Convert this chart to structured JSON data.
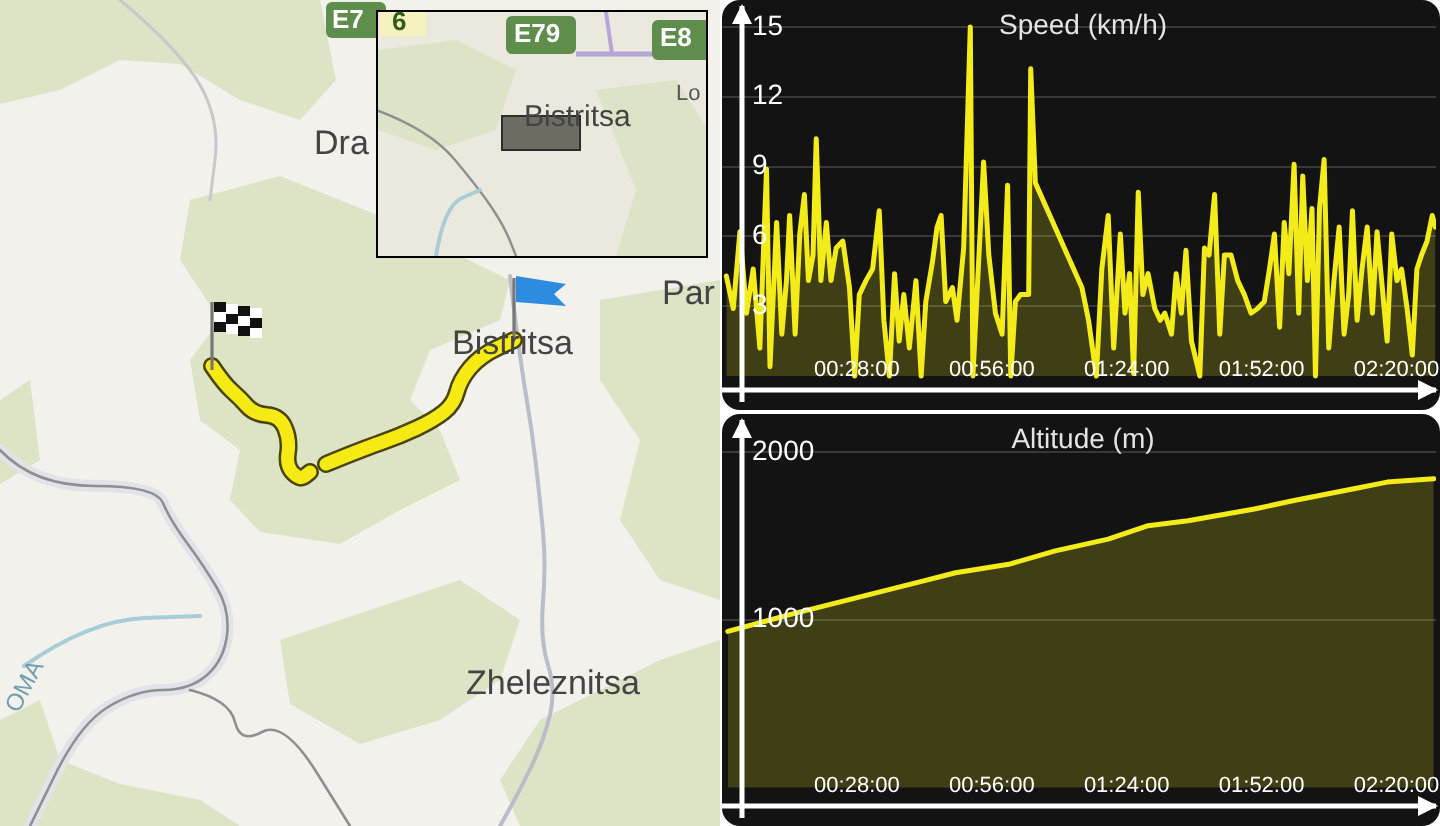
{
  "chart_data": [
    {
      "type": "other",
      "annotations": [
        "E7",
        "6",
        "E79",
        "E8",
        "Lo",
        "Dra",
        "Bistritsa",
        "Par",
        "Bistritsa",
        "Zheleznitsa",
        "OMA"
      ]
    },
    {
      "type": "area",
      "title": "Speed (km/h)",
      "color": "#f4ec18",
      "grid": "y",
      "xlim": [
        0,
        2.47
      ],
      "ylim": [
        -0.6,
        15.9
      ],
      "yticks": [
        3,
        6,
        9,
        12,
        15
      ],
      "xticks": [
        {
          "value": 0.4667,
          "label": "00:28:00"
        },
        {
          "value": 0.9333,
          "label": "00:56:00"
        },
        {
          "value": 1.4,
          "label": "01:24:00"
        },
        {
          "value": 1.8667,
          "label": "01:52:00"
        },
        {
          "value": 2.3333,
          "label": "02:20:00"
        }
      ],
      "x": [
        0.015,
        0.039,
        0.062,
        0.085,
        0.108,
        0.131,
        0.154,
        0.166,
        0.189,
        0.207,
        0.223,
        0.234,
        0.253,
        0.269,
        0.285,
        0.299,
        0.315,
        0.326,
        0.342,
        0.361,
        0.377,
        0.395,
        0.418,
        0.441,
        0.459,
        0.475,
        0.498,
        0.521,
        0.544,
        0.56,
        0.579,
        0.597,
        0.613,
        0.629,
        0.648,
        0.671,
        0.689,
        0.705,
        0.728,
        0.744,
        0.758,
        0.774,
        0.797,
        0.813,
        0.836,
        0.859,
        0.868,
        0.889,
        0.905,
        0.923,
        0.946,
        0.969,
        0.988,
        0.999,
        1.015,
        1.033,
        1.061,
        1.068,
        1.084,
        1.245,
        1.268,
        1.295,
        1.314,
        1.336,
        1.355,
        1.378,
        1.394,
        1.41,
        1.424,
        1.44,
        1.456,
        1.474,
        1.497,
        1.516,
        1.532,
        1.555,
        1.571,
        1.589,
        1.605,
        1.624,
        1.653,
        1.669,
        1.685,
        1.704,
        1.722,
        1.738,
        1.761,
        1.784,
        1.807,
        1.83,
        1.853,
        1.876,
        1.894,
        1.911,
        1.929,
        1.945,
        1.961,
        1.979,
        1.995,
        2.009,
        2.025,
        2.041,
        2.053,
        2.067,
        2.083,
        2.099,
        2.117,
        2.135,
        2.152,
        2.168,
        2.181,
        2.197,
        2.214,
        2.232,
        2.25,
        2.266,
        2.282,
        2.301,
        2.317,
        2.335,
        2.351,
        2.37,
        2.388,
        2.404,
        2.42,
        2.439,
        2.457,
        2.468
      ],
      "values": [
        4.3,
        2.9,
        6.2,
        2.7,
        4.6,
        1.2,
        8.9,
        0.4,
        6.6,
        1.8,
        4.1,
        6.9,
        1.8,
        6.1,
        7.8,
        4.1,
        5.2,
        10.2,
        4.1,
        6.6,
        4.1,
        5.5,
        5.8,
        3.8,
        0,
        3.5,
        4.1,
        4.6,
        7.1,
        2.4,
        0,
        4.4,
        1.5,
        3.5,
        1.2,
        4.1,
        0,
        3.2,
        4.9,
        6.4,
        6.9,
        3.2,
        3.8,
        2.4,
        5.5,
        15,
        0,
        5.2,
        9.2,
        5.2,
        2.7,
        1.8,
        8.2,
        0,
        3.2,
        3.5,
        3.5,
        13.2,
        8.3,
        3.8,
        2.4,
        0,
        4.6,
        6.9,
        1.2,
        6.1,
        2.7,
        4.4,
        0.1,
        7.9,
        3.5,
        4.4,
        2.9,
        2.4,
        2.7,
        1.8,
        4.4,
        2.7,
        5.4,
        1.5,
        0,
        5.5,
        5.2,
        7.8,
        1.8,
        5.2,
        5.2,
        4.1,
        3.5,
        2.7,
        2.9,
        3.2,
        4.6,
        6.1,
        2.1,
        6.6,
        4.4,
        9.1,
        2.7,
        8.6,
        4.1,
        7.2,
        0,
        7.2,
        9.3,
        1.2,
        4.1,
        6.4,
        1.8,
        3.5,
        7.1,
        2.4,
        4.6,
        6.4,
        2.7,
        6.2,
        4.1,
        1.5,
        6.1,
        4.1,
        4.6,
        2.9,
        0.9,
        4.6,
        5.2,
        5.8,
        6.9,
        6.4
      ]
    },
    {
      "type": "area",
      "title": "Altitude (m)",
      "color": "#f4ec18",
      "grid": "y",
      "xlim": [
        0,
        2.47
      ],
      "ylim": [
        -110,
        2190
      ],
      "yticks": [
        1000,
        2000
      ],
      "xticks": [
        {
          "value": 0.4667,
          "label": "00:28:00"
        },
        {
          "value": 0.9333,
          "label": "00:56:00"
        },
        {
          "value": 1.4,
          "label": "01:24:00"
        },
        {
          "value": 1.8667,
          "label": "01:52:00"
        },
        {
          "value": 2.3333,
          "label": "02:20:00"
        }
      ],
      "x": [
        0.02,
        0.234,
        0.464,
        0.694,
        0.808,
        0.992,
        1.153,
        1.336,
        1.474,
        1.612,
        1.842,
        1.979,
        2.186,
        2.301,
        2.462
      ],
      "values": [
        930,
        1030,
        1130,
        1230,
        1280,
        1330,
        1410,
        1480,
        1560,
        1590,
        1660,
        1710,
        1780,
        1820,
        1840
      ]
    }
  ]
}
